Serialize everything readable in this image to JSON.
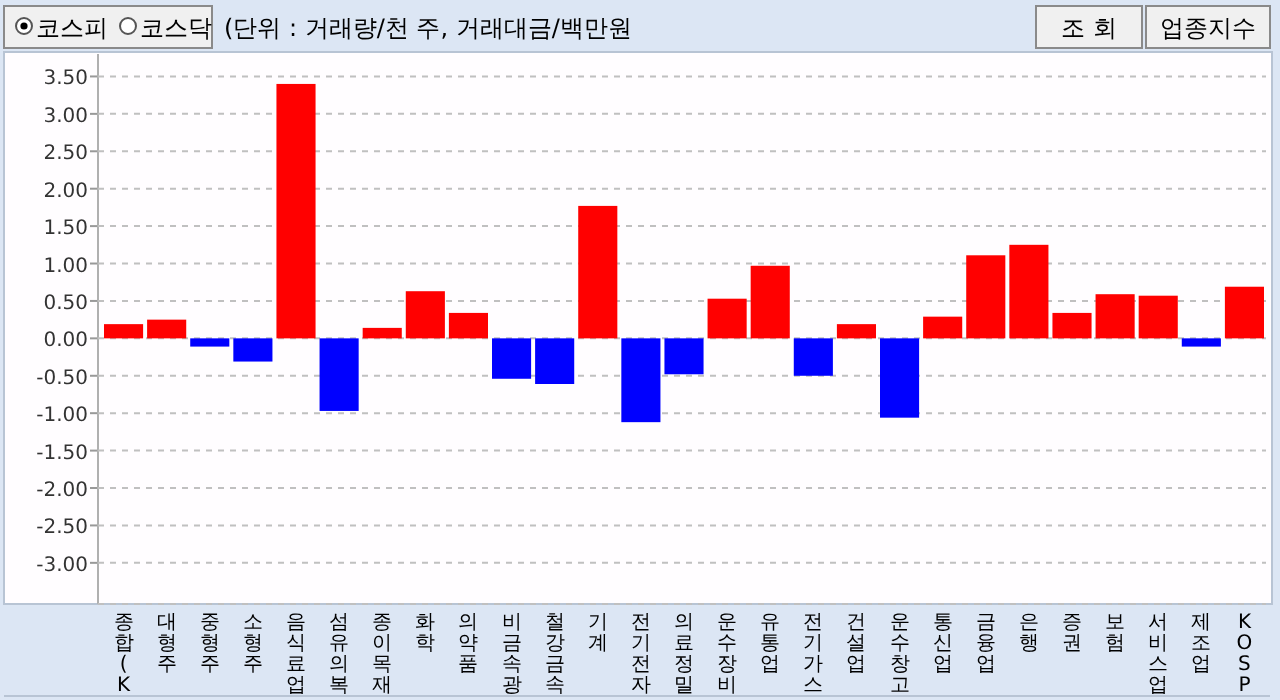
{
  "chart_data": {
    "type": "bar",
    "annotations": [
      "코스피",
      "코스닥",
      "(단위 : 거래량/천 주, 거래대금/백만원",
      "조  회",
      "업종지수"
    ],
    "categories": [
      "종합(K",
      "대형주",
      "중형주",
      "소형주",
      "음식료업",
      "섬유의복",
      "종이목재",
      "화학",
      "의약품",
      "비금속광",
      "철강금속",
      "기계",
      "전기전자",
      "의료정밀",
      "운수장비",
      "유통업",
      "전기가스",
      "건설업",
      "운수창고",
      "통신업",
      "금융업",
      "은행",
      "증권",
      "보험",
      "서비스업",
      "제조업",
      "KOSP"
    ],
    "values": [
      0.19,
      0.25,
      -0.11,
      -0.31,
      3.4,
      -0.97,
      0.14,
      0.63,
      0.34,
      -0.54,
      -0.61,
      1.77,
      -1.12,
      -0.48,
      0.53,
      0.97,
      -0.5,
      0.19,
      -1.06,
      0.29,
      1.11,
      1.25,
      0.34,
      0.59,
      0.57,
      -0.11,
      0.69
    ],
    "colors": [
      "#ff0000",
      "#ff0000",
      "#0000ff",
      "#0000ff",
      "#ff0000",
      "#0000ff",
      "#ff0000",
      "#ff0000",
      "#ff0000",
      "#0000ff",
      "#0000ff",
      "#ff0000",
      "#0000ff",
      "#0000ff",
      "#ff0000",
      "#ff0000",
      "#0000ff",
      "#ff0000",
      "#0000ff",
      "#ff0000",
      "#ff0000",
      "#ff0000",
      "#ff0000",
      "#ff0000",
      "#ff0000",
      "#0000ff",
      "#ff0000"
    ],
    "ylim": [
      -3.55,
      3.8
    ],
    "yticks": [
      {
        "value": 3.5,
        "label": "3.50"
      },
      {
        "value": 3,
        "label": "3.00"
      },
      {
        "value": 2.5,
        "label": "2.50"
      },
      {
        "value": 2,
        "label": "2.00"
      },
      {
        "value": 1.5,
        "label": "1.50"
      },
      {
        "value": 1,
        "label": "1.00"
      },
      {
        "value": 0.5,
        "label": "0.50"
      },
      {
        "value": 0,
        "label": "0.00"
      },
      {
        "value": -0.5,
        "label": "-0.50"
      },
      {
        "value": -1,
        "label": "-1.00"
      },
      {
        "value": -1.5,
        "label": "-1.50"
      },
      {
        "value": -2,
        "label": "-2.00"
      },
      {
        "value": -2.5,
        "label": "-2.50"
      },
      {
        "value": -3,
        "label": "-3.00"
      }
    ],
    "grid": "y"
  }
}
